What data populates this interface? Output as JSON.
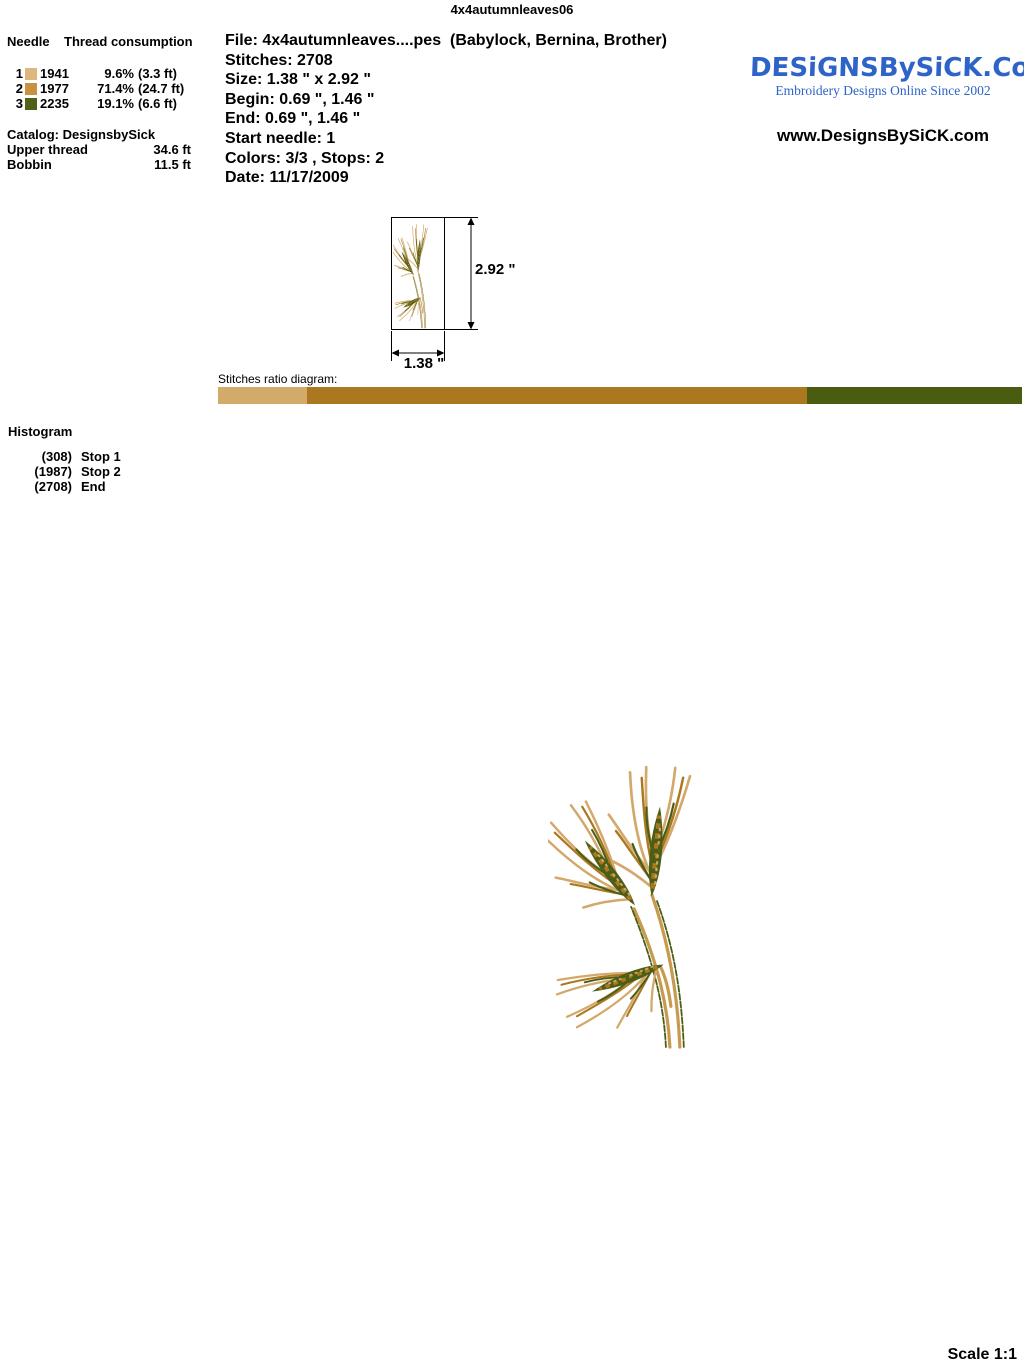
{
  "page": {
    "title": "4x4autumnleaves06",
    "scale_label": "Scale 1:1"
  },
  "thread_table": {
    "header": {
      "needle": "Needle",
      "consumption": "Thread consumption"
    },
    "rows": [
      {
        "needle": "1",
        "color": "#dcb87e",
        "stitches": "1941",
        "percent": "9.6%",
        "length": "(3.3 ft)"
      },
      {
        "needle": "2",
        "color": "#c89240",
        "stitches": "1977",
        "percent": "71.4%",
        "length": "(24.7 ft)"
      },
      {
        "needle": "3",
        "color": "#50621a",
        "stitches": "2235",
        "percent": "19.1%",
        "length": "(6.6 ft)"
      }
    ],
    "catalog": "Catalog: DesignsbySick",
    "upper_thread": {
      "label": "Upper thread",
      "value": "34.6 ft"
    },
    "bobbin": {
      "label": "Bobbin",
      "value": "11.5 ft"
    }
  },
  "file_info": {
    "file": "File: 4x4autumnleaves....pes  (Babylock, Bernina, Brother)",
    "stitches": "Stitches: 2708",
    "size": "Size: 1.38 \" x 2.92 \"",
    "begin": "Begin: 0.69 \", 1.46 \"",
    "end": "End: 0.69 \", 1.46 \"",
    "start_needle": "Start needle: 1",
    "colors": "Colors: 3/3 , Stops: 2",
    "date": "Date: 11/17/2009"
  },
  "branding": {
    "logo_text": "DESiGNSBySiCK.Com",
    "tagline": "Embroidery Designs Online Since 2002",
    "url": "www.DesignsBySiCK.com",
    "logo_color": "#2e63c8"
  },
  "preview": {
    "height_label": "2.92 \"",
    "width_label": "1.38 \""
  },
  "ratio_diagram": {
    "label": "Stitches ratio diagram:",
    "segments": [
      {
        "color": "#d2ab6a",
        "width_percent": 11.1
      },
      {
        "color": "#ab771f",
        "width_percent": 62.2
      },
      {
        "color": "#4a5c10",
        "width_percent": 26.7
      }
    ]
  },
  "histogram": {
    "title": "Histogram",
    "entries": [
      {
        "count": "(308)",
        "label": "Stop 1"
      },
      {
        "count": "(1987)",
        "label": "Stop 2"
      },
      {
        "count": "(2708)",
        "label": "End"
      }
    ]
  },
  "design_colors": {
    "tan": "#d2a96b",
    "brown": "#ab771f",
    "green": "#4b5e15"
  }
}
